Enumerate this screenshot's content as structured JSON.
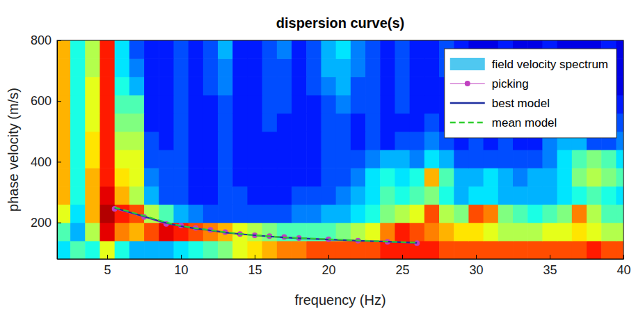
{
  "chart_data": {
    "type": "line",
    "title": "dispersion curve(s)",
    "x_label": "frequency (Hz)",
    "y_label": "phase velocity (m/s)",
    "xlim": [
      1.6,
      40
    ],
    "ylim": [
      80,
      800
    ],
    "xticks": [
      5,
      10,
      15,
      20,
      25,
      30,
      35,
      40
    ],
    "yticks": [
      200,
      400,
      600,
      800
    ],
    "legend": "upper right",
    "grid": false,
    "spectrum": {
      "name": "field velocity spectrum",
      "color": "#4fc8f0",
      "zlim": [
        0,
        1
      ],
      "x": [
        2,
        3,
        4,
        5,
        6,
        7,
        8,
        9,
        10,
        11,
        12,
        13,
        14,
        15,
        16,
        17,
        18,
        19,
        20,
        21,
        22,
        23,
        24,
        25,
        26,
        27,
        28,
        29,
        30,
        31,
        32,
        33,
        34,
        35,
        36,
        37,
        38,
        39,
        40
      ],
      "y": [
        110,
        170,
        230,
        290,
        350,
        410,
        470,
        530,
        590,
        650,
        710,
        770
      ],
      "values": [
        [
          0.35,
          0.45,
          0.4,
          0.6,
          0.4,
          0.3,
          0.3,
          0.3,
          0.35,
          0.4,
          0.45,
          0.5,
          0.6,
          0.65,
          0.7,
          0.75,
          0.75,
          0.8,
          0.8,
          0.8,
          0.8,
          0.8,
          0.85,
          0.85,
          0.85,
          0.85,
          0.8,
          0.8,
          0.8,
          0.8,
          0.8,
          0.8,
          0.8,
          0.8,
          0.8,
          0.8,
          0.85,
          0.8,
          0.8
        ],
        [
          0.45,
          0.3,
          0.55,
          0.9,
          0.75,
          0.7,
          0.8,
          0.9,
          0.85,
          0.8,
          0.75,
          0.7,
          0.6,
          0.55,
          0.5,
          0.45,
          0.45,
          0.45,
          0.45,
          0.5,
          0.55,
          0.6,
          0.75,
          0.85,
          0.8,
          0.75,
          0.7,
          0.65,
          0.65,
          0.6,
          0.55,
          0.55,
          0.55,
          0.6,
          0.6,
          0.65,
          0.6,
          0.55,
          0.55
        ],
        [
          0.6,
          0.35,
          0.7,
          0.95,
          0.85,
          0.8,
          0.55,
          0.45,
          0.3,
          0.25,
          0.2,
          0.2,
          0.2,
          0.2,
          0.2,
          0.2,
          0.25,
          0.25,
          0.3,
          0.3,
          0.35,
          0.4,
          0.5,
          0.55,
          0.6,
          0.8,
          0.55,
          0.5,
          0.8,
          0.75,
          0.5,
          0.45,
          0.4,
          0.45,
          0.5,
          0.75,
          0.55,
          0.45,
          0.45
        ],
        [
          0.7,
          0.4,
          0.7,
          0.9,
          0.7,
          0.55,
          0.3,
          0.2,
          0.2,
          0.15,
          0.15,
          0.2,
          0.2,
          0.15,
          0.15,
          0.15,
          0.2,
          0.2,
          0.2,
          0.25,
          0.3,
          0.35,
          0.45,
          0.4,
          0.45,
          0.5,
          0.4,
          0.3,
          0.35,
          0.35,
          0.3,
          0.3,
          0.3,
          0.3,
          0.35,
          0.4,
          0.45,
          0.4,
          0.35
        ],
        [
          0.7,
          0.4,
          0.7,
          0.85,
          0.65,
          0.6,
          0.25,
          0.2,
          0.2,
          0.15,
          0.15,
          0.2,
          0.15,
          0.15,
          0.15,
          0.15,
          0.15,
          0.15,
          0.2,
          0.2,
          0.25,
          0.35,
          0.4,
          0.35,
          0.4,
          0.7,
          0.45,
          0.3,
          0.3,
          0.35,
          0.3,
          0.25,
          0.3,
          0.3,
          0.35,
          0.5,
          0.55,
          0.5,
          0.45
        ],
        [
          0.7,
          0.4,
          0.65,
          0.85,
          0.6,
          0.6,
          0.2,
          0.2,
          0.2,
          0.15,
          0.15,
          0.2,
          0.15,
          0.15,
          0.15,
          0.15,
          0.15,
          0.15,
          0.2,
          0.2,
          0.2,
          0.25,
          0.3,
          0.3,
          0.25,
          0.35,
          0.3,
          0.2,
          0.2,
          0.2,
          0.2,
          0.2,
          0.2,
          0.25,
          0.35,
          0.45,
          0.5,
          0.45,
          0.35
        ],
        [
          0.7,
          0.4,
          0.65,
          0.85,
          0.55,
          0.55,
          0.2,
          0.15,
          0.2,
          0.15,
          0.15,
          0.2,
          0.15,
          0.15,
          0.15,
          0.15,
          0.15,
          0.15,
          0.2,
          0.2,
          0.15,
          0.2,
          0.15,
          0.2,
          0.2,
          0.25,
          0.2,
          0.15,
          0.2,
          0.15,
          0.2,
          0.15,
          0.15,
          0.25,
          0.3,
          0.3,
          0.2,
          0.2,
          0.25
        ],
        [
          0.7,
          0.4,
          0.6,
          0.85,
          0.5,
          0.5,
          0.15,
          0.15,
          0.2,
          0.15,
          0.15,
          0.2,
          0.15,
          0.15,
          0.2,
          0.15,
          0.15,
          0.15,
          0.2,
          0.2,
          0.15,
          0.2,
          0.15,
          0.15,
          0.15,
          0.2,
          0.15,
          0.15,
          0.15,
          0.15,
          0.2,
          0.15,
          0.15,
          0.2,
          0.25,
          0.2,
          0.15,
          0.15,
          0.2
        ],
        [
          0.7,
          0.4,
          0.6,
          0.85,
          0.45,
          0.45,
          0.15,
          0.15,
          0.2,
          0.15,
          0.15,
          0.2,
          0.15,
          0.15,
          0.2,
          0.2,
          0.15,
          0.15,
          0.2,
          0.25,
          0.2,
          0.2,
          0.15,
          0.2,
          0.15,
          0.15,
          0.15,
          0.15,
          0.15,
          0.1,
          0.15,
          0.15,
          0.1,
          0.15,
          0.2,
          0.15,
          0.1,
          0.15,
          0.15
        ],
        [
          0.7,
          0.4,
          0.6,
          0.85,
          0.4,
          0.3,
          0.15,
          0.15,
          0.2,
          0.15,
          0.2,
          0.25,
          0.15,
          0.15,
          0.2,
          0.2,
          0.15,
          0.2,
          0.25,
          0.3,
          0.2,
          0.2,
          0.15,
          0.2,
          0.15,
          0.15,
          0.15,
          0.15,
          0.1,
          0.1,
          0.15,
          0.1,
          0.1,
          0.15,
          0.15,
          0.1,
          0.1,
          0.15,
          0.1
        ],
        [
          0.7,
          0.4,
          0.55,
          0.85,
          0.35,
          0.25,
          0.15,
          0.15,
          0.2,
          0.15,
          0.2,
          0.25,
          0.15,
          0.15,
          0.2,
          0.2,
          0.15,
          0.2,
          0.3,
          0.3,
          0.25,
          0.2,
          0.15,
          0.2,
          0.15,
          0.15,
          0.2,
          0.15,
          0.1,
          0.1,
          0.15,
          0.1,
          0.1,
          0.15,
          0.1,
          0.1,
          0.1,
          0.15,
          0.1
        ],
        [
          0.7,
          0.4,
          0.55,
          0.85,
          0.35,
          0.2,
          0.15,
          0.15,
          0.2,
          0.15,
          0.2,
          0.3,
          0.15,
          0.15,
          0.2,
          0.25,
          0.15,
          0.2,
          0.3,
          0.35,
          0.25,
          0.2,
          0.15,
          0.2,
          0.15,
          0.15,
          0.2,
          0.15,
          0.1,
          0.1,
          0.15,
          0.1,
          0.1,
          0.15,
          0.1,
          0.1,
          0.1,
          0.15,
          0.1
        ]
      ]
    },
    "x": [
      5.5,
      7.5,
      9,
      10,
      11,
      12,
      13,
      14,
      15,
      16,
      17,
      18,
      20,
      22,
      24,
      26
    ],
    "series": [
      {
        "name": "picking",
        "color": "#c040c0",
        "marker": "circle",
        "line_style": "solid",
        "values": [
          245,
          218,
          195,
          190,
          182,
          176,
          168,
          162,
          158,
          155,
          152,
          149,
          145,
          140,
          136,
          132
        ]
      },
      {
        "name": "best model",
        "color": "#1f2f9f",
        "line_style": "solid",
        "values": [
          248,
          220,
          198,
          188,
          180,
          174,
          167,
          162,
          158,
          154,
          151,
          148,
          144,
          140,
          137,
          133
        ]
      },
      {
        "name": "mean model",
        "color": "#2fcf2f",
        "line_style": "dashed",
        "values": [
          250,
          222,
          200,
          189,
          181,
          175,
          168,
          163,
          158,
          155,
          151,
          149,
          145,
          141,
          137,
          134
        ]
      }
    ]
  }
}
